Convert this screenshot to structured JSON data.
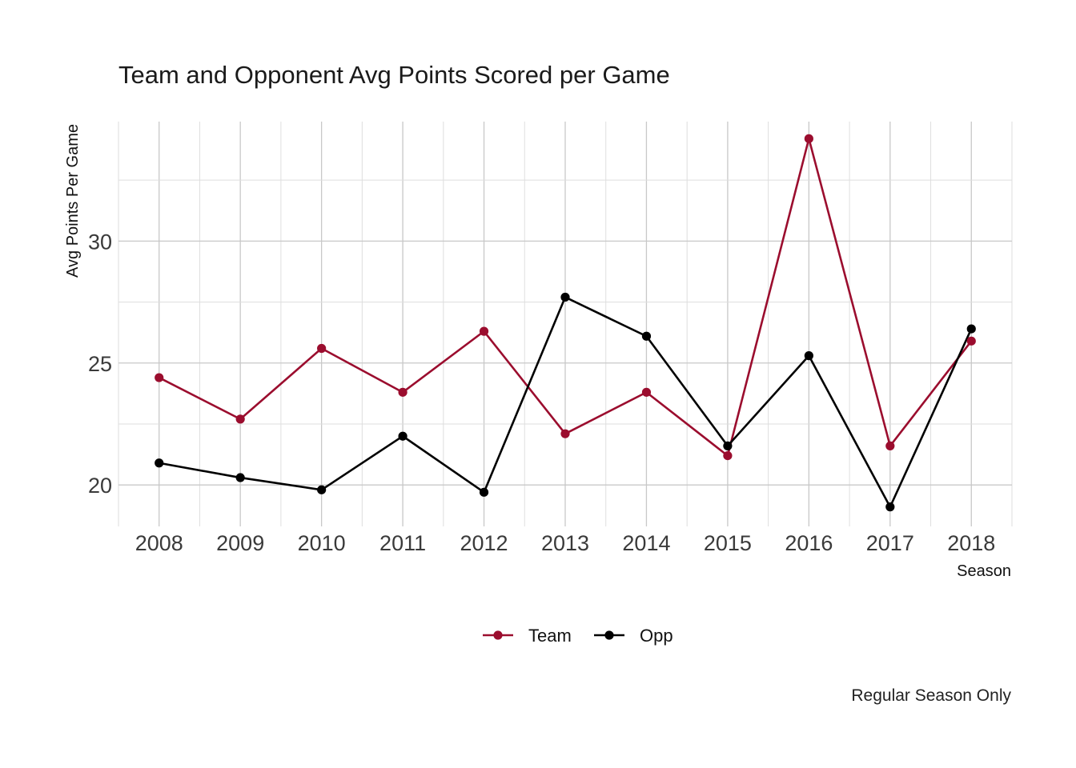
{
  "chart_data": {
    "type": "line",
    "title": "Team and Opponent Avg Points Scored per Game",
    "xlabel": "Season",
    "ylabel": "Avg Points Per Game",
    "caption": "Regular Season Only",
    "categories": [
      "2008",
      "2009",
      "2010",
      "2011",
      "2012",
      "2013",
      "2014",
      "2015",
      "2016",
      "2017",
      "2018"
    ],
    "yticks": [
      20,
      25,
      30
    ],
    "ylim": [
      18.3,
      34.9
    ],
    "grid": true,
    "legend_position": "bottom",
    "series": [
      {
        "name": "Team",
        "color": "#9b0d2e",
        "values": [
          24.4,
          22.7,
          25.6,
          23.8,
          26.3,
          22.1,
          23.8,
          21.2,
          34.2,
          21.6,
          25.9
        ]
      },
      {
        "name": "Opp",
        "color": "#000000",
        "values": [
          20.9,
          20.3,
          19.8,
          22.0,
          19.7,
          27.7,
          26.1,
          21.6,
          25.3,
          19.1,
          26.4
        ]
      }
    ]
  }
}
